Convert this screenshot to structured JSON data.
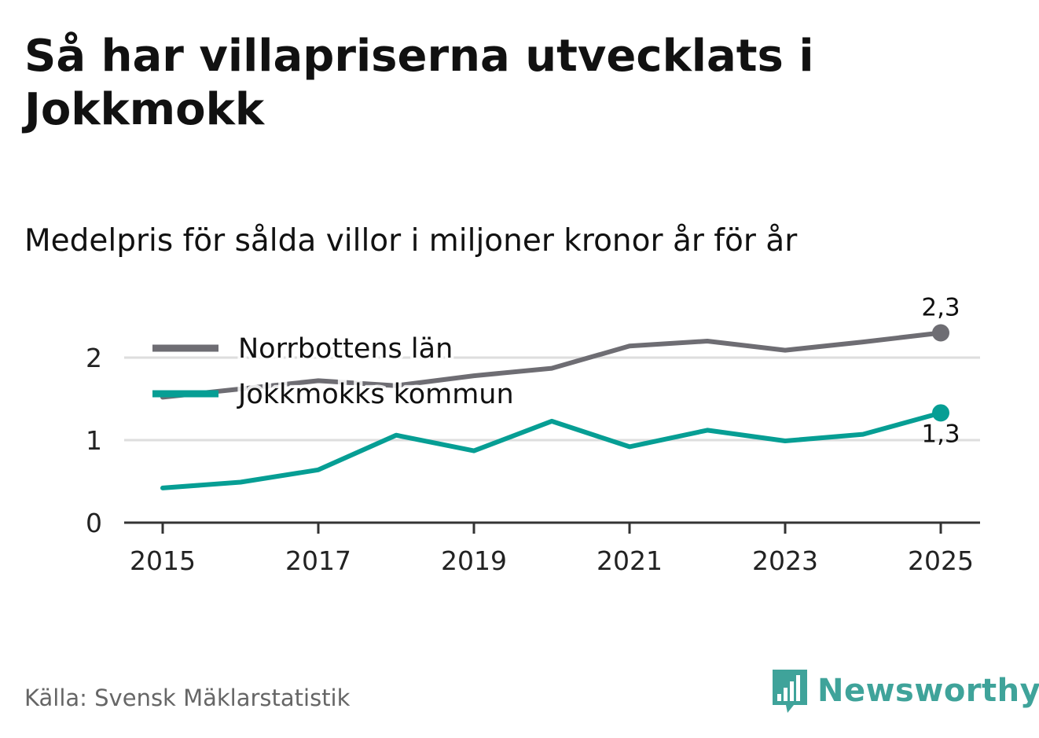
{
  "title": "Så har villapriserna utvecklats i Jokkmokk",
  "subtitle": "Medelpris för sålda villor i miljoner kronor år för år",
  "source": "Källa: Svensk Mäklarstatistik",
  "brand": {
    "name": "Newsworthy",
    "icon": "bar-chart-speech-bubble-icon"
  },
  "colors": {
    "norrbotten": "#6e6d73",
    "jokkmokk": "#069e94",
    "grid": "#dedede",
    "axis": "#333333",
    "brand": "#3fa39a"
  },
  "chart_data": {
    "type": "line",
    "title": "Så har villapriserna utvecklats i Jokkmokk",
    "subtitle": "Medelpris för sålda villor i miljoner kronor år för år",
    "xlabel": "",
    "ylabel": "",
    "x": [
      2015,
      2016,
      2017,
      2018,
      2019,
      2020,
      2021,
      2022,
      2023,
      2024,
      2025
    ],
    "x_ticks": [
      "2015",
      "2017",
      "2019",
      "2021",
      "2023",
      "2025"
    ],
    "y_ticks": [
      "0",
      "1",
      "2"
    ],
    "ylim": [
      0,
      2.5
    ],
    "grid": true,
    "legend_position": "top-left",
    "series": [
      {
        "name": "Norrbottens län",
        "values": [
          1.52,
          1.62,
          1.72,
          1.66,
          1.78,
          1.87,
          2.14,
          2.2,
          2.09,
          2.19,
          2.3
        ],
        "end_label": "2,3"
      },
      {
        "name": "Jokkmokks kommun",
        "values": [
          0.42,
          0.49,
          0.64,
          1.06,
          0.87,
          1.23,
          0.92,
          1.12,
          0.99,
          1.07,
          1.33
        ],
        "end_label": "1,3"
      }
    ]
  }
}
